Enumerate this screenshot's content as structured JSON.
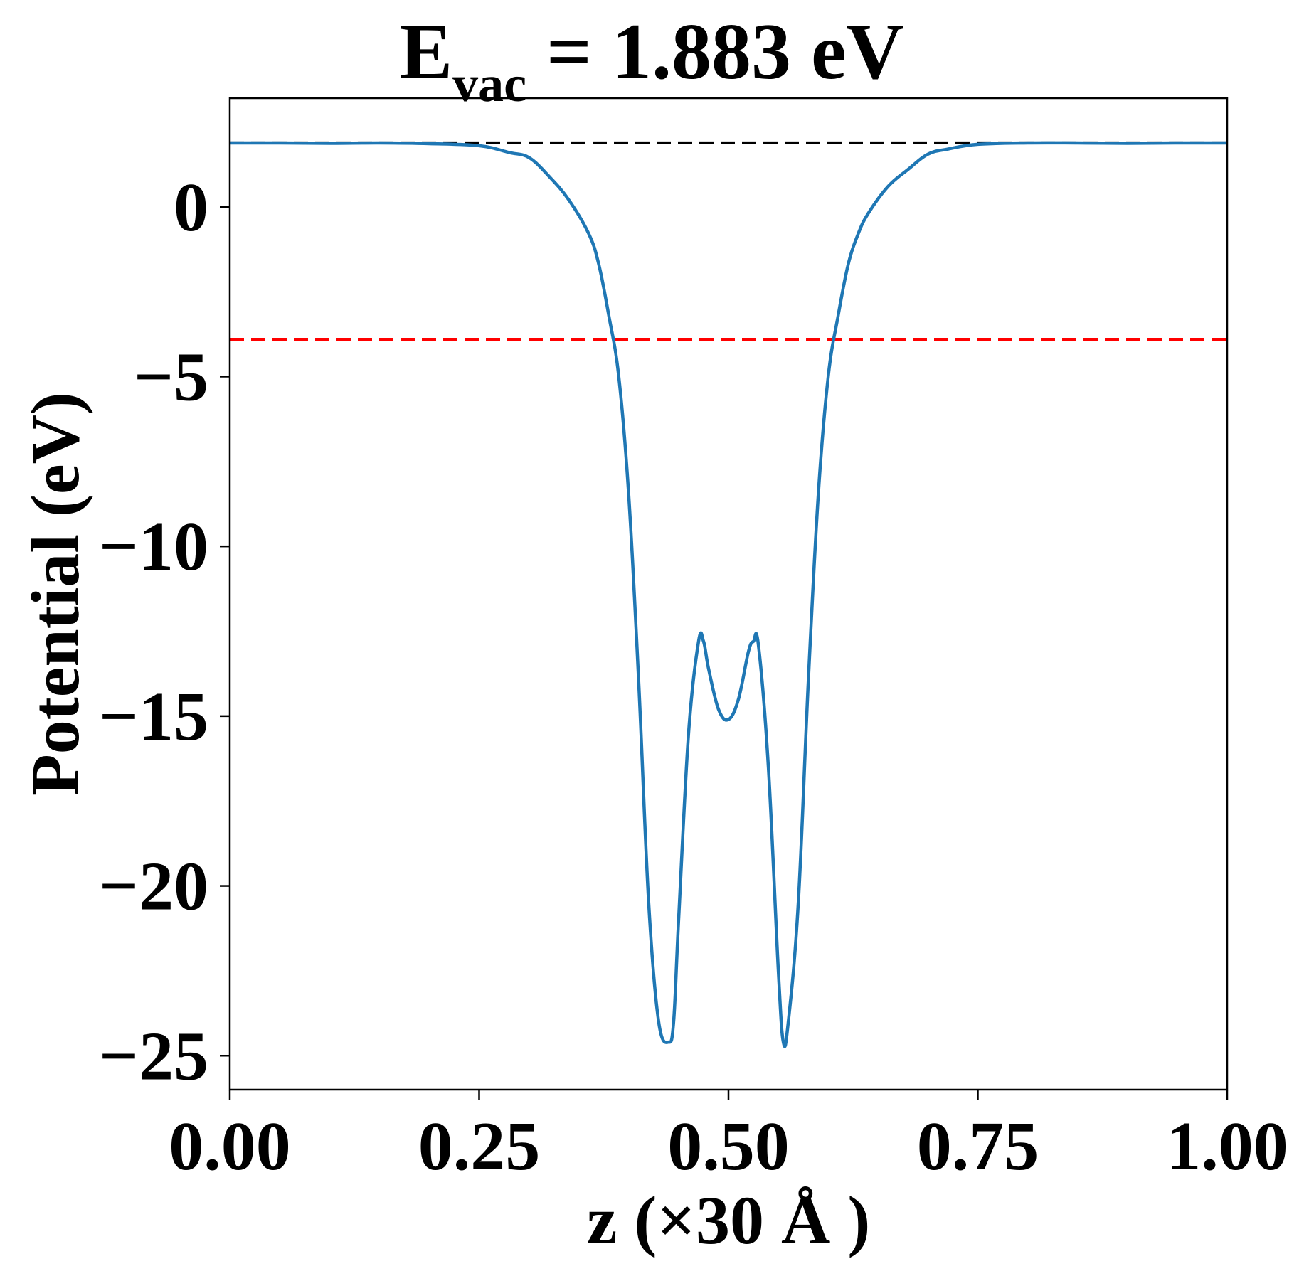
{
  "chart_data": {
    "type": "line",
    "title": {
      "main": "E",
      "subscript": "vac",
      "rest": " = 1.883 eV"
    },
    "xlabel": "z (×30 Å )",
    "ylabel": "Potential (eV)",
    "xlim": [
      0,
      1
    ],
    "ylim": [
      -26,
      3.2
    ],
    "xticks": [
      {
        "value": 0.0,
        "label": "0.00"
      },
      {
        "value": 0.25,
        "label": "0.25"
      },
      {
        "value": 0.5,
        "label": "0.50"
      },
      {
        "value": 0.75,
        "label": "0.75"
      },
      {
        "value": 1.0,
        "label": "1.00"
      }
    ],
    "yticks": [
      {
        "value": 0,
        "label": "0"
      },
      {
        "value": -5,
        "label": "−5"
      },
      {
        "value": -10,
        "label": "−10"
      },
      {
        "value": -15,
        "label": "−15"
      },
      {
        "value": -20,
        "label": "−20"
      },
      {
        "value": -25,
        "label": "−25"
      }
    ],
    "grid": false,
    "reference_lines": [
      {
        "y": 1.883,
        "color": "#000000",
        "style": "dashed"
      },
      {
        "y": -3.9,
        "color": "#ff0000",
        "style": "dashed"
      }
    ],
    "series": [
      {
        "color": "#1f77b4",
        "x": [
          0.0,
          0.05,
          0.1,
          0.15,
          0.2,
          0.25,
          0.28,
          0.3,
          0.32,
          0.34,
          0.36,
          0.37,
          0.38,
          0.39,
          0.4,
          0.41,
          0.42,
          0.43,
          0.44,
          0.445,
          0.45,
          0.46,
          0.47,
          0.475,
          0.48,
          0.49,
          0.5,
          0.51,
          0.52,
          0.525,
          0.53,
          0.54,
          0.55,
          0.555,
          0.56,
          0.57,
          0.58,
          0.59,
          0.6,
          0.61,
          0.62,
          0.63,
          0.64,
          0.66,
          0.68,
          0.7,
          0.72,
          0.75,
          0.8,
          0.85,
          0.9,
          0.95,
          1.0
        ],
        "y": [
          1.88,
          1.88,
          1.87,
          1.88,
          1.86,
          1.8,
          1.6,
          1.45,
          0.9,
          0.2,
          -0.8,
          -1.7,
          -3.2,
          -5.0,
          -8.5,
          -14.0,
          -20.5,
          -24.0,
          -24.6,
          -24.0,
          -21.0,
          -15.5,
          -12.8,
          -12.8,
          -13.6,
          -14.8,
          -15.1,
          -14.5,
          -13.1,
          -12.8,
          -12.9,
          -16.5,
          -22.5,
          -24.6,
          -24.0,
          -20.5,
          -14.0,
          -8.5,
          -5.0,
          -3.2,
          -1.7,
          -0.8,
          -0.2,
          0.6,
          1.1,
          1.55,
          1.7,
          1.84,
          1.88,
          1.88,
          1.87,
          1.88,
          1.88
        ]
      }
    ]
  }
}
